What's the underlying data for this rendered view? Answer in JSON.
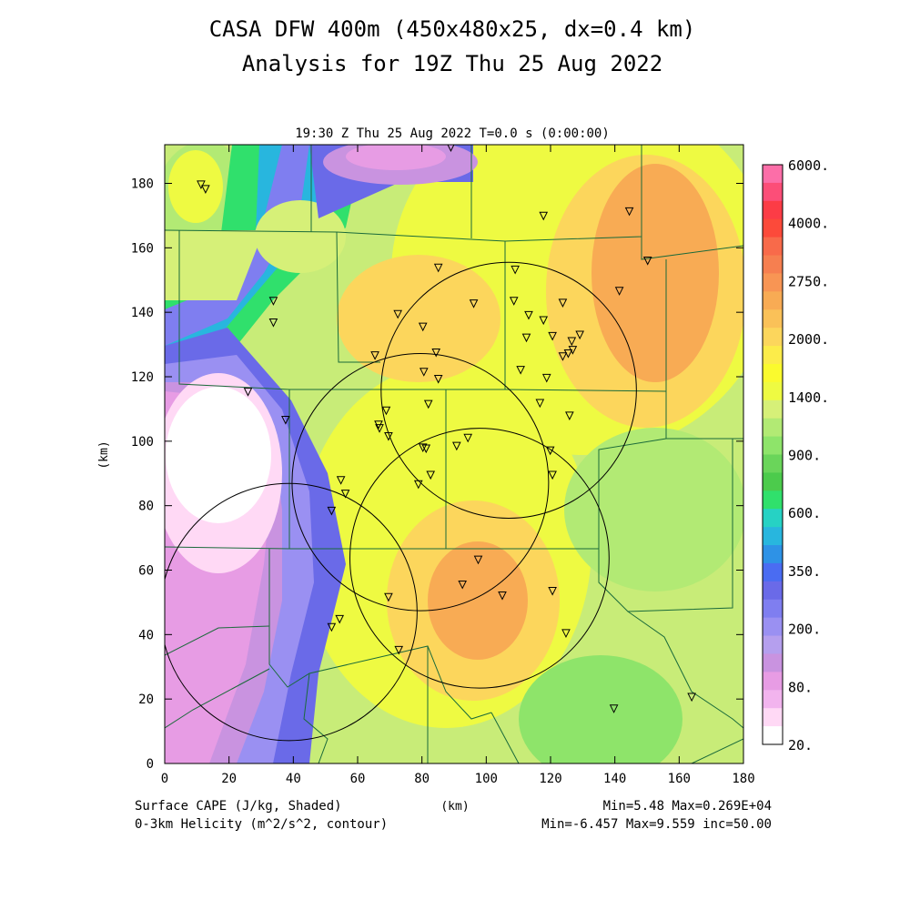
{
  "chart_data": {
    "type": "heatmap",
    "title_line1": "CASA DFW 400m (450x480x25, dx=0.4 km)",
    "title_line2": "Analysis for 19Z Thu 25 Aug 2022",
    "subtitle": "19:30 Z Thu 25 Aug 2022   T=0.0 s (0:00:00)",
    "xlabel": "(km)",
    "ylabel": "(km)",
    "xlim": [
      0,
      180
    ],
    "ylim": [
      0,
      192
    ],
    "xticks": [
      0,
      20,
      40,
      60,
      80,
      100,
      120,
      140,
      160,
      180
    ],
    "yticks": [
      0,
      20,
      40,
      60,
      80,
      100,
      120,
      140,
      160,
      180
    ],
    "field_shaded": "Surface CAPE (J/kg, Shaded)",
    "field_contour": "0-3km Helicity (m^2/s^2, contour)",
    "shaded_stats": "Min=5.48 Max=0.269E+04",
    "contour_stats": "Min=-6.457 Max=9.559 inc=50.00",
    "colorbar_labels": [
      "6000.",
      "4000.",
      "2750.",
      "2000.",
      "1400.",
      "900.",
      "600.",
      "350.",
      "200.",
      "80.",
      "20."
    ],
    "colorbar_colors": [
      "#ffffff",
      "#ffd9f5",
      "#f2b4ee",
      "#e79ce4",
      "#c993e0",
      "#b59fee",
      "#9a90f2",
      "#7f7ef0",
      "#6a6ae8",
      "#4a6cf2",
      "#2e92e6",
      "#28b6de",
      "#26d2c4",
      "#30e06c",
      "#4ccb4c",
      "#6ad55a",
      "#8ee46a",
      "#b2ea74",
      "#d6f078",
      "#eefa42",
      "#fafa2e",
      "#fcec4a",
      "#fcd65c",
      "#fac158",
      "#f8ab54",
      "#f89554",
      "#f67f50",
      "#f86a4a",
      "#fc4a3a",
      "#fc3c46",
      "#fc4e78",
      "#fc6ea8"
    ],
    "radar_rings": [
      {
        "cx": 38.6,
        "cy": 47.0,
        "r": 39.9
      },
      {
        "cx": 79.5,
        "cy": 87.3,
        "r": 39.9
      },
      {
        "cx": 97.9,
        "cy": 63.7,
        "r": 40.3
      },
      {
        "cx": 107.0,
        "cy": 115.8,
        "r": 39.7
      }
    ],
    "stations": [
      [
        11.3,
        179.6
      ],
      [
        12.7,
        178.2
      ],
      [
        89.0,
        191.2
      ],
      [
        117.8,
        169.9
      ],
      [
        144.5,
        171.3
      ],
      [
        150.2,
        156.0
      ],
      [
        85.1,
        153.8
      ],
      [
        109.0,
        153.2
      ],
      [
        33.8,
        143.5
      ],
      [
        33.8,
        136.8
      ],
      [
        72.5,
        139.4
      ],
      [
        80.3,
        135.5
      ],
      [
        96.1,
        142.7
      ],
      [
        108.6,
        143.5
      ],
      [
        113.2,
        139.1
      ],
      [
        117.8,
        137.5
      ],
      [
        123.8,
        142.9
      ],
      [
        141.4,
        146.6
      ],
      [
        112.5,
        132.1
      ],
      [
        120.6,
        132.6
      ],
      [
        126.6,
        131.0
      ],
      [
        129.1,
        133.0
      ],
      [
        126.9,
        128.3
      ],
      [
        125.5,
        127.2
      ],
      [
        123.8,
        126.3
      ],
      [
        65.4,
        126.6
      ],
      [
        84.4,
        127.5
      ],
      [
        80.6,
        121.5
      ],
      [
        85.1,
        119.3
      ],
      [
        110.7,
        122.1
      ],
      [
        118.8,
        119.6
      ],
      [
        25.9,
        115.3
      ],
      [
        37.6,
        106.6
      ],
      [
        82.0,
        111.5
      ],
      [
        68.9,
        109.5
      ],
      [
        116.7,
        111.8
      ],
      [
        125.9,
        107.9
      ],
      [
        66.5,
        105.1
      ],
      [
        66.8,
        104.0
      ],
      [
        69.6,
        101.5
      ],
      [
        94.3,
        101.0
      ],
      [
        90.8,
        98.5
      ],
      [
        80.3,
        98.0
      ],
      [
        81.3,
        97.7
      ],
      [
        119.9,
        97.1
      ],
      [
        54.8,
        87.9
      ],
      [
        56.2,
        83.7
      ],
      [
        78.9,
        86.6
      ],
      [
        82.7,
        89.5
      ],
      [
        120.6,
        89.5
      ],
      [
        51.9,
        78.4
      ],
      [
        97.5,
        63.2
      ],
      [
        92.6,
        55.5
      ],
      [
        105.0,
        52.1
      ],
      [
        120.6,
        53.5
      ],
      [
        69.6,
        51.6
      ],
      [
        54.4,
        44.8
      ],
      [
        51.9,
        42.3
      ],
      [
        72.8,
        35.2
      ],
      [
        124.8,
        40.4
      ],
      [
        139.7,
        17.0
      ],
      [
        163.9,
        20.6
      ]
    ]
  }
}
